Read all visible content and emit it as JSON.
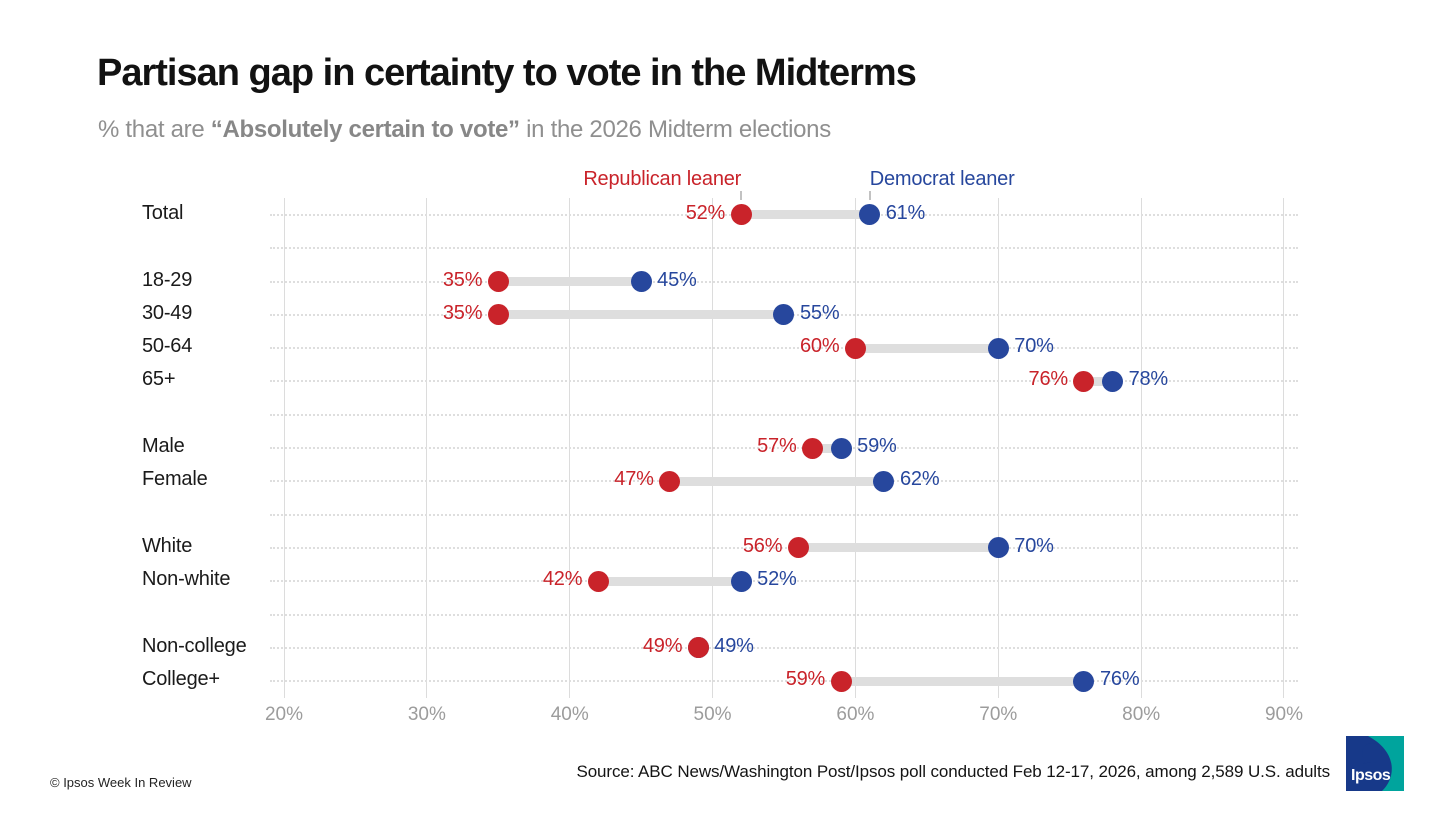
{
  "page": {
    "title": "Partisan gap in certainty to vote in the Midterms",
    "subtitle_prefix": "% that are ",
    "subtitle_bold": "“Absolutely certain to vote”",
    "subtitle_suffix": " in the 2026 Midterm elections",
    "source": "Source: ABC News/Washington Post/Ipsos poll conducted Feb 12-17, 2026, among 2,589 U.S. adults",
    "footer_left": "© Ipsos Week In Review",
    "logo_text": "Ipsos"
  },
  "colors": {
    "republican": "#c9232a",
    "democrat": "#27479d",
    "connector": "#dedede",
    "vertical_gridline": "#dcdcdc",
    "dotted_gridline": "#dedede",
    "axis_text": "#9c9c9c",
    "title_text": "#121212",
    "subtitle_text": "#8f8f8f",
    "logo_navy": "#173989",
    "logo_teal": "#00a49d"
  },
  "legend": {
    "republican_label": "Republican leaner",
    "democrat_label": "Democrat leaner"
  },
  "chart_data": {
    "type": "scatter",
    "variant": "dumbbell",
    "title": "Partisan gap in certainty to vote in the Midterms",
    "subtitle": "% that are “Absolutely certain to vote” in the 2026 Midterm elections",
    "x_unit": "%",
    "xlim": [
      19,
      91
    ],
    "x_tick_values": [
      20,
      30,
      40,
      50,
      60,
      70,
      80,
      90
    ],
    "x_tick_labels": [
      "20%",
      "30%",
      "40%",
      "50%",
      "60%",
      "70%",
      "80%",
      "90%"
    ],
    "grid": {
      "vertical": "solid",
      "horizontal": "dotted"
    },
    "legend_position": "top",
    "series": [
      {
        "name": "Republican leaner",
        "color": "#c9232a"
      },
      {
        "name": "Democrat leaner",
        "color": "#27479d"
      }
    ],
    "rows": [
      {
        "label": "Total",
        "republican": 52,
        "democrat": 61
      },
      {
        "spacer": true
      },
      {
        "label": "18-29",
        "republican": 35,
        "democrat": 45
      },
      {
        "label": "30-49",
        "republican": 35,
        "democrat": 55
      },
      {
        "label": "50-64",
        "republican": 60,
        "democrat": 70
      },
      {
        "label": "65+",
        "republican": 76,
        "democrat": 78
      },
      {
        "spacer": true
      },
      {
        "label": "Male",
        "republican": 57,
        "democrat": 59
      },
      {
        "label": "Female",
        "republican": 47,
        "democrat": 62
      },
      {
        "spacer": true
      },
      {
        "label": "White",
        "republican": 56,
        "democrat": 70
      },
      {
        "label": "Non-white",
        "republican": 42,
        "democrat": 52
      },
      {
        "spacer": true
      },
      {
        "label": "Non-college",
        "republican": 49,
        "democrat": 49
      },
      {
        "label": "College+",
        "republican": 59,
        "democrat": 76
      }
    ]
  }
}
